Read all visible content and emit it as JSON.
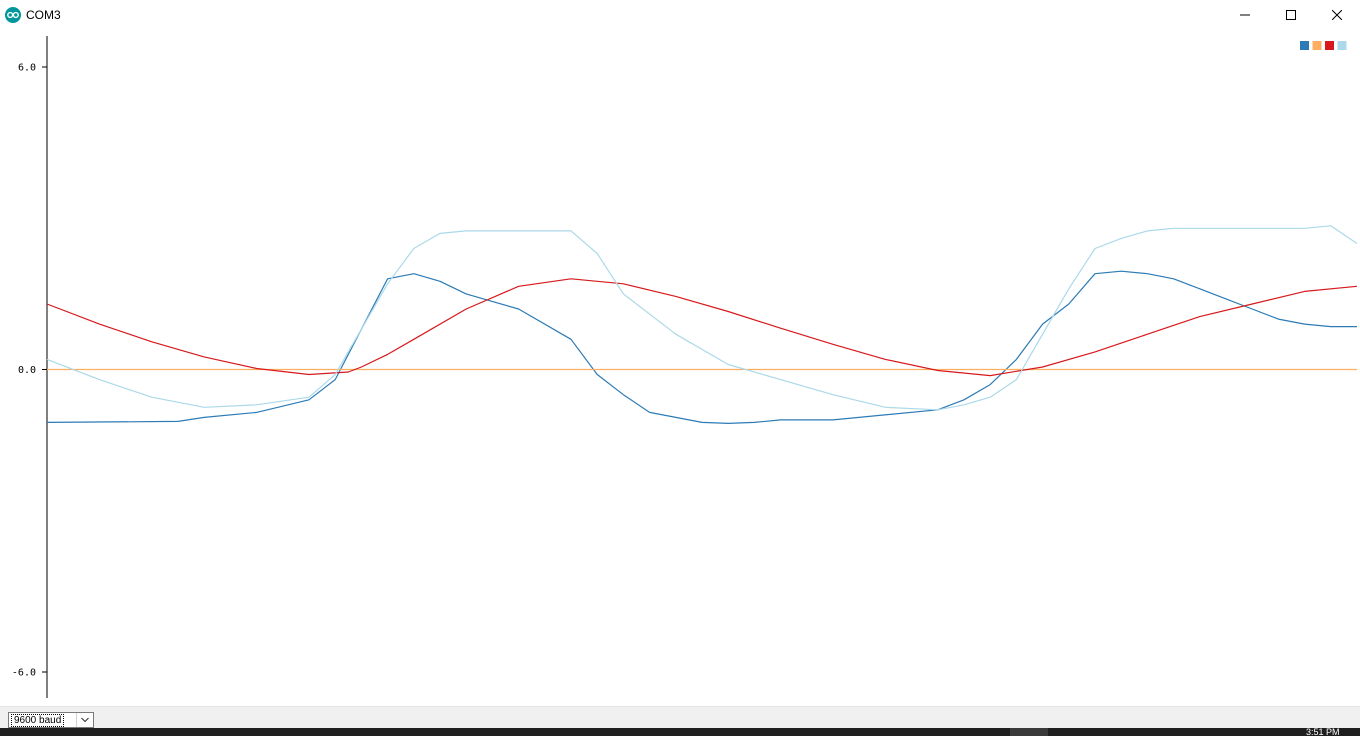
{
  "window": {
    "title": "COM3",
    "minimize_icon": "minimize-icon",
    "maximize_icon": "maximize-icon",
    "close_icon": "close-icon"
  },
  "legend": {
    "colors": [
      "#2c7bb6",
      "#fdae61",
      "#d7191c",
      "#abd9e9"
    ]
  },
  "bottom": {
    "baud_value": "9600 baud"
  },
  "taskbar": {
    "clock": "3:51 PM"
  },
  "chart_data": {
    "type": "line",
    "ylim": [
      -6.0,
      6.0
    ],
    "y_ticks": [
      "6.0",
      "0.0",
      "-6.0"
    ],
    "y_tick_values": [
      6.0,
      0.0,
      -6.0
    ],
    "grid": false,
    "legend_position": "top-right",
    "x_range": [
      0,
      500
    ],
    "series": [
      {
        "color": "#2c7bb6",
        "x": [
          0,
          50,
          60,
          80,
          100,
          110,
          120,
          130,
          140,
          150,
          160,
          180,
          200,
          210,
          220,
          230,
          240,
          250,
          260,
          270,
          280,
          300,
          340,
          350,
          360,
          370,
          380,
          390,
          400,
          410,
          420,
          430,
          440,
          450,
          460,
          470,
          480,
          490,
          500
        ],
        "values": [
          -1.05,
          -1.03,
          -0.95,
          -0.85,
          -0.6,
          -0.2,
          0.8,
          1.8,
          1.9,
          1.75,
          1.5,
          1.2,
          0.6,
          -0.1,
          -0.5,
          -0.85,
          -0.95,
          -1.05,
          -1.07,
          -1.05,
          -1.0,
          -1.0,
          -0.8,
          -0.6,
          -0.3,
          0.2,
          0.9,
          1.3,
          1.9,
          1.95,
          1.9,
          1.8,
          1.6,
          1.4,
          1.2,
          1.0,
          0.9,
          0.85,
          0.85
        ]
      },
      {
        "color": "#fdae61",
        "x": [
          0,
          500
        ],
        "values": [
          0.0,
          0.0
        ]
      },
      {
        "color": "#d7191c",
        "x": [
          0,
          20,
          40,
          60,
          80,
          100,
          115,
          120,
          130,
          140,
          160,
          180,
          200,
          220,
          240,
          260,
          280,
          300,
          320,
          340,
          360,
          380,
          400,
          420,
          440,
          460,
          480,
          500
        ],
        "values": [
          1.3,
          0.9,
          0.55,
          0.25,
          0.02,
          -0.1,
          -0.05,
          0.05,
          0.3,
          0.6,
          1.2,
          1.65,
          1.8,
          1.7,
          1.45,
          1.15,
          0.82,
          0.5,
          0.2,
          -0.02,
          -0.12,
          0.05,
          0.35,
          0.7,
          1.05,
          1.3,
          1.55,
          1.65
        ]
      },
      {
        "color": "#abd9e9",
        "x": [
          0,
          20,
          40,
          60,
          80,
          100,
          110,
          120,
          130,
          140,
          150,
          160,
          180,
          200,
          210,
          220,
          240,
          260,
          280,
          300,
          320,
          340,
          350,
          360,
          370,
          380,
          390,
          400,
          410,
          420,
          430,
          440,
          450,
          460,
          470,
          480,
          490,
          500
        ],
        "values": [
          0.2,
          -0.2,
          -0.55,
          -0.75,
          -0.7,
          -0.55,
          -0.1,
          0.8,
          1.7,
          2.4,
          2.7,
          2.75,
          2.75,
          2.75,
          2.3,
          1.5,
          0.7,
          0.1,
          -0.2,
          -0.5,
          -0.75,
          -0.8,
          -0.7,
          -0.55,
          -0.2,
          0.7,
          1.6,
          2.4,
          2.6,
          2.75,
          2.8,
          2.8,
          2.8,
          2.8,
          2.8,
          2.8,
          2.85,
          2.5
        ]
      }
    ]
  }
}
